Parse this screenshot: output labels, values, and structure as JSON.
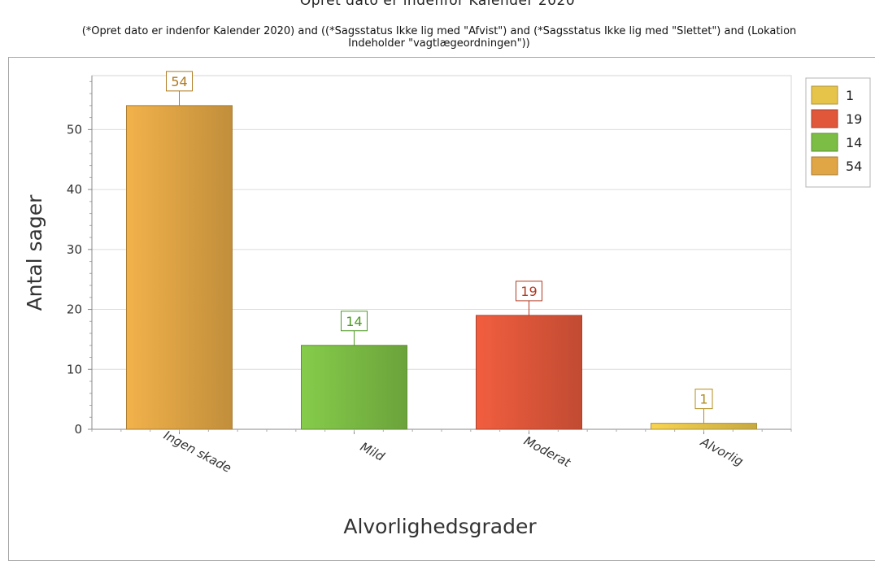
{
  "header": {
    "title": "Opret dato er indenfor Kalender 2020",
    "filter_line1": "(*Opret dato er indenfor Kalender 2020) and ((*Sagsstatus Ikke lig med \"Afvist\") and (*Sagsstatus Ikke lig med \"Slettet\") and (Lokation",
    "filter_line2": "Indeholder \"vagtlægeordningen\"))"
  },
  "chart_data": {
    "type": "bar",
    "title": "Opret dato er indenfor Kalender 2020",
    "xlabel": "Alvorlighedsgrader",
    "ylabel": "Antal sager",
    "categories": [
      "Ingen skade",
      "Mild",
      "Moderat",
      "Alvorlig"
    ],
    "values": [
      54,
      14,
      19,
      1
    ],
    "data_labels": [
      "54",
      "14",
      "19",
      "1"
    ],
    "ylim": [
      0,
      59
    ],
    "yticks": [
      0,
      10,
      20,
      30,
      40,
      50
    ],
    "grid": true,
    "legend_position": "top-right",
    "legend": [
      {
        "label": "1",
        "category": "Alvorlig",
        "color": "#e6c44a"
      },
      {
        "label": "19",
        "category": "Moderat",
        "color": "#e0573a"
      },
      {
        "label": "14",
        "category": "Mild",
        "color": "#7cbd45"
      },
      {
        "label": "54",
        "category": "Ingen skade",
        "color": "#e0a545"
      }
    ],
    "colors": {
      "Ingen skade": "#e0a545",
      "Mild": "#7cbd45",
      "Moderat": "#e0573a",
      "Alvorlig": "#e6c44a"
    },
    "label_colors": {
      "Ingen skade": "#b07a1f",
      "Mild": "#4e9a25",
      "Moderat": "#b03a22",
      "Alvorlig": "#b08d1c"
    }
  }
}
